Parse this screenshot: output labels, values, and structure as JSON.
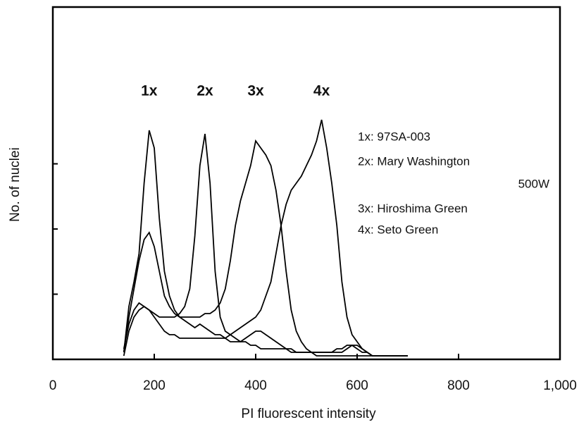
{
  "chart_data": {
    "type": "line",
    "x_label": "PI fluorescent intensity",
    "y_label": "No. of nuclei",
    "xlim": [
      0,
      1000
    ],
    "xticks": [
      0,
      200,
      400,
      600,
      800,
      {
        "value": 1000,
        "label": "1,000"
      }
    ],
    "ylim": [
      0,
      100
    ],
    "yticks": [
      0,
      18.5,
      37,
      55.5
    ],
    "x": [
      140,
      150,
      160,
      170,
      180,
      190,
      200,
      210,
      220,
      230,
      240,
      250,
      260,
      270,
      280,
      290,
      300,
      310,
      320,
      330,
      340,
      350,
      360,
      370,
      380,
      390,
      400,
      410,
      420,
      430,
      440,
      450,
      460,
      470,
      480,
      490,
      500,
      510,
      520,
      530,
      540,
      550,
      560,
      570,
      580,
      590,
      600,
      610,
      620,
      630,
      640,
      650,
      660,
      670,
      680,
      690,
      700
    ],
    "series": [
      {
        "name": "1x",
        "color": "#000000",
        "values": [
          2,
          15,
          22,
          30,
          50,
          65,
          60,
          40,
          25,
          18,
          14,
          12,
          11,
          10,
          9,
          10,
          9,
          8,
          7,
          7,
          6,
          5,
          5,
          5,
          6,
          7,
          8,
          8,
          7,
          6,
          5,
          4,
          3,
          3,
          2,
          2,
          2,
          2,
          2,
          2,
          2,
          2,
          2,
          2,
          3,
          4,
          4,
          3,
          2,
          1,
          1,
          1,
          1,
          1,
          1,
          1,
          1
        ]
      },
      {
        "name": "2x",
        "color": "#000000",
        "values": [
          3,
          10,
          14,
          16,
          15,
          14,
          13,
          12,
          12,
          12,
          12,
          13,
          15,
          20,
          35,
          55,
          64,
          50,
          25,
          12,
          8,
          7,
          6,
          5,
          5,
          4,
          4,
          3,
          3,
          3,
          3,
          3,
          3,
          2,
          2,
          2,
          2,
          2,
          2,
          2,
          2,
          2,
          3,
          3,
          4,
          4,
          3,
          2,
          2,
          1,
          1,
          1,
          1,
          1,
          1,
          1,
          1
        ]
      },
      {
        "name": "3x",
        "color": "#000000",
        "values": [
          2,
          12,
          20,
          28,
          34,
          36,
          32,
          25,
          18,
          15,
          13,
          12,
          12,
          12,
          12,
          12,
          13,
          13,
          14,
          16,
          20,
          28,
          38,
          45,
          50,
          55,
          62,
          60,
          58,
          55,
          48,
          38,
          25,
          14,
          8,
          5,
          3,
          2,
          1,
          1,
          1,
          1,
          1,
          1,
          1,
          1,
          1,
          1,
          1,
          1,
          1,
          1,
          1,
          1,
          1,
          1,
          1
        ]
      },
      {
        "name": "4x",
        "color": "#000000",
        "values": [
          1,
          8,
          12,
          14,
          15,
          14,
          12,
          10,
          8,
          7,
          7,
          6,
          6,
          6,
          6,
          6,
          6,
          6,
          6,
          6,
          6,
          7,
          8,
          9,
          10,
          11,
          12,
          14,
          18,
          22,
          30,
          38,
          44,
          48,
          50,
          52,
          55,
          58,
          62,
          68,
          60,
          50,
          38,
          22,
          12,
          7,
          5,
          3,
          2,
          1,
          1,
          1,
          1,
          1,
          1,
          1,
          1
        ]
      }
    ],
    "annotations": [
      "1x: 97SA-003",
      "2x: Mary Washington",
      "500W",
      "3x: Hiroshima Green",
      "4x: Seto Green"
    ]
  }
}
